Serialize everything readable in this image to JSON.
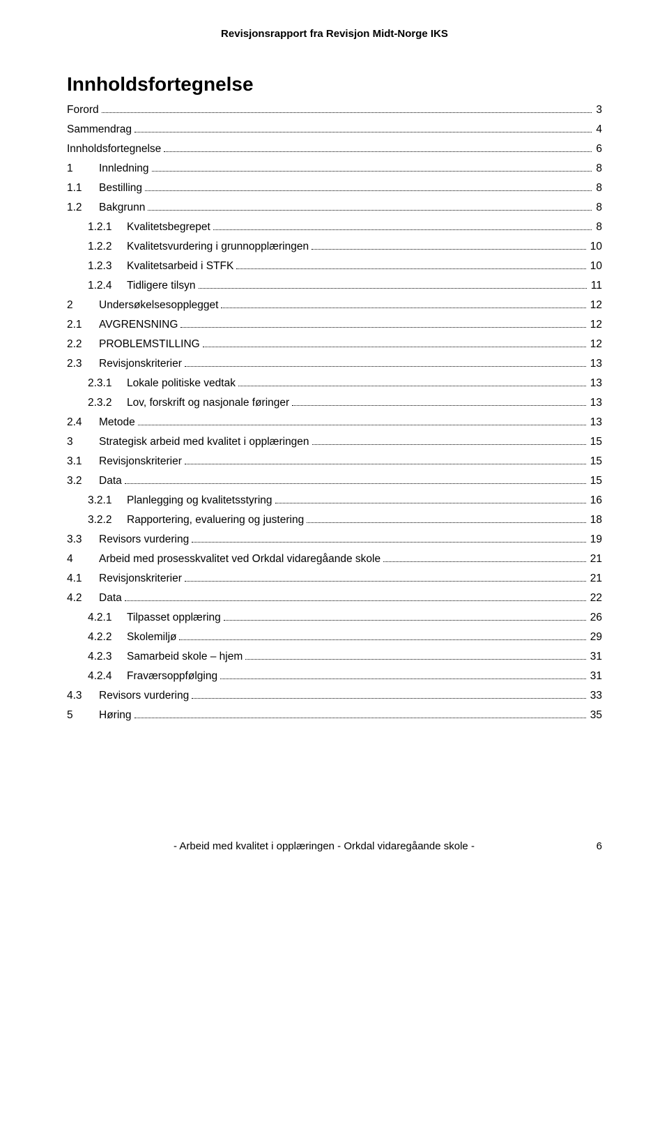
{
  "header": "Revisjonsrapport fra Revisjon Midt-Norge IKS",
  "title": "Innholdsfortegnelse",
  "toc": [
    {
      "lvl": 0,
      "num": "",
      "label": "Forord",
      "page": "3"
    },
    {
      "lvl": 0,
      "num": "",
      "label": "Sammendrag",
      "page": "4"
    },
    {
      "lvl": 0,
      "num": "",
      "label": "Innholdsfortegnelse",
      "page": "6"
    },
    {
      "lvl": 0,
      "num": "1",
      "label": "Innledning",
      "page": "8"
    },
    {
      "lvl": 1,
      "num": "1.1",
      "label": "Bestilling",
      "page": "8"
    },
    {
      "lvl": 1,
      "num": "1.2",
      "label": "Bakgrunn",
      "page": "8"
    },
    {
      "lvl": 2,
      "num": "1.2.1",
      "label": "Kvalitetsbegrepet",
      "page": "8"
    },
    {
      "lvl": 2,
      "num": "1.2.2",
      "label": "Kvalitetsvurdering i grunnopplæringen",
      "page": "10"
    },
    {
      "lvl": 2,
      "num": "1.2.3",
      "label": "Kvalitetsarbeid i STFK",
      "page": "10"
    },
    {
      "lvl": 2,
      "num": "1.2.4",
      "label": "Tidligere tilsyn",
      "page": "11"
    },
    {
      "lvl": 0,
      "num": "2",
      "label": "Undersøkelsesopplegget",
      "page": "12"
    },
    {
      "lvl": 1,
      "num": "2.1",
      "label": "AVGRENSNING",
      "page": "12"
    },
    {
      "lvl": 1,
      "num": "2.2",
      "label": "PROBLEMSTILLING",
      "page": "12"
    },
    {
      "lvl": 1,
      "num": "2.3",
      "label": "Revisjonskriterier",
      "page": "13"
    },
    {
      "lvl": 2,
      "num": "2.3.1",
      "label": "Lokale politiske vedtak",
      "page": "13"
    },
    {
      "lvl": 2,
      "num": "2.3.2",
      "label": "Lov, forskrift og nasjonale føringer",
      "page": "13"
    },
    {
      "lvl": 1,
      "num": "2.4",
      "label": "Metode",
      "page": "13"
    },
    {
      "lvl": 0,
      "num": "3",
      "label": "Strategisk arbeid med kvalitet i opplæringen",
      "page": "15"
    },
    {
      "lvl": 1,
      "num": "3.1",
      "label": "Revisjonskriterier",
      "page": "15"
    },
    {
      "lvl": 1,
      "num": "3.2",
      "label": "Data",
      "page": "15"
    },
    {
      "lvl": 2,
      "num": "3.2.1",
      "label": "Planlegging og kvalitetsstyring",
      "page": "16"
    },
    {
      "lvl": 2,
      "num": "3.2.2",
      "label": "Rapportering, evaluering og justering",
      "page": "18"
    },
    {
      "lvl": 1,
      "num": "3.3",
      "label": "Revisors vurdering",
      "page": "19"
    },
    {
      "lvl": 0,
      "num": "4",
      "label": "Arbeid med prosesskvalitet ved Orkdal vidaregåande skole",
      "page": "21"
    },
    {
      "lvl": 1,
      "num": "4.1",
      "label": "Revisjonskriterier",
      "page": "21"
    },
    {
      "lvl": 1,
      "num": "4.2",
      "label": "Data",
      "page": "22"
    },
    {
      "lvl": 2,
      "num": "4.2.1",
      "label": "Tilpasset opplæring",
      "page": "26"
    },
    {
      "lvl": 2,
      "num": "4.2.2",
      "label": "Skolemiljø",
      "page": "29"
    },
    {
      "lvl": 2,
      "num": "4.2.3",
      "label": "Samarbeid skole – hjem",
      "page": "31"
    },
    {
      "lvl": 2,
      "num": "4.2.4",
      "label": "Fraværsoppfølging",
      "page": "31"
    },
    {
      "lvl": 1,
      "num": "4.3",
      "label": "Revisors vurdering",
      "page": "33"
    },
    {
      "lvl": 0,
      "num": "5",
      "label": "Høring",
      "page": "35"
    }
  ],
  "footer": {
    "text": "- Arbeid med kvalitet i opplæringen - Orkdal vidaregåande skole -",
    "page": "6"
  }
}
